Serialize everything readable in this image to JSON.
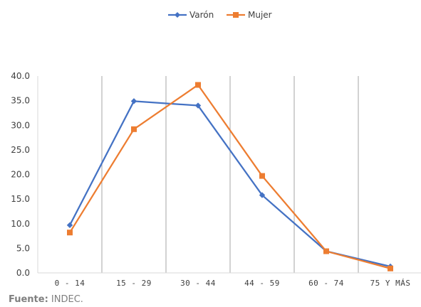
{
  "chart_data": {
    "type": "line",
    "categories": [
      "0 - 14",
      "15 - 29",
      "30 - 44",
      "44 - 59",
      "60 - 74",
      "75 Y MÁS"
    ],
    "series": [
      {
        "name": "Varón",
        "color": "#4472c4",
        "marker": "diamond",
        "values": [
          9.7,
          34.9,
          34.0,
          15.8,
          4.4,
          1.3
        ]
      },
      {
        "name": "Mujer",
        "color": "#ed7d31",
        "marker": "square",
        "values": [
          8.2,
          29.2,
          38.2,
          19.7,
          4.4,
          0.9
        ]
      }
    ],
    "ylim": [
      0,
      40
    ],
    "yticks": [
      "0.0",
      "5.0",
      "10.0",
      "15.0",
      "20.0",
      "25.0",
      "30.0",
      "35.0",
      "40.0"
    ],
    "ytick_values": [
      0,
      5,
      10,
      15,
      20,
      25,
      30,
      35,
      40
    ],
    "grid": "vertical",
    "legend_position": "top-center",
    "xlabel": "",
    "ylabel": "",
    "title": ""
  },
  "source": {
    "label": "Fuente:",
    "text": " INDEC."
  }
}
